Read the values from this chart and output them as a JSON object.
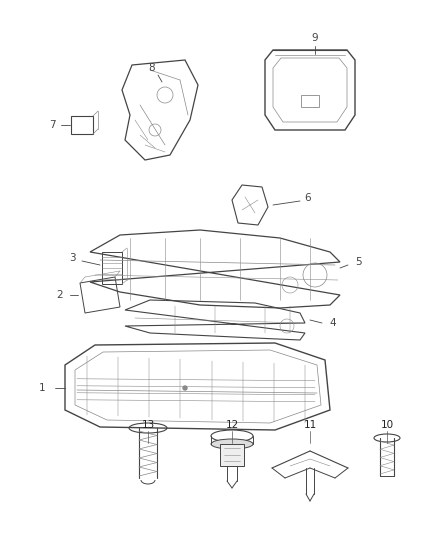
{
  "background_color": "#ffffff",
  "line_color": "#444444",
  "label_color": "#222222",
  "fig_width": 4.38,
  "fig_height": 5.33,
  "dpi": 100
}
